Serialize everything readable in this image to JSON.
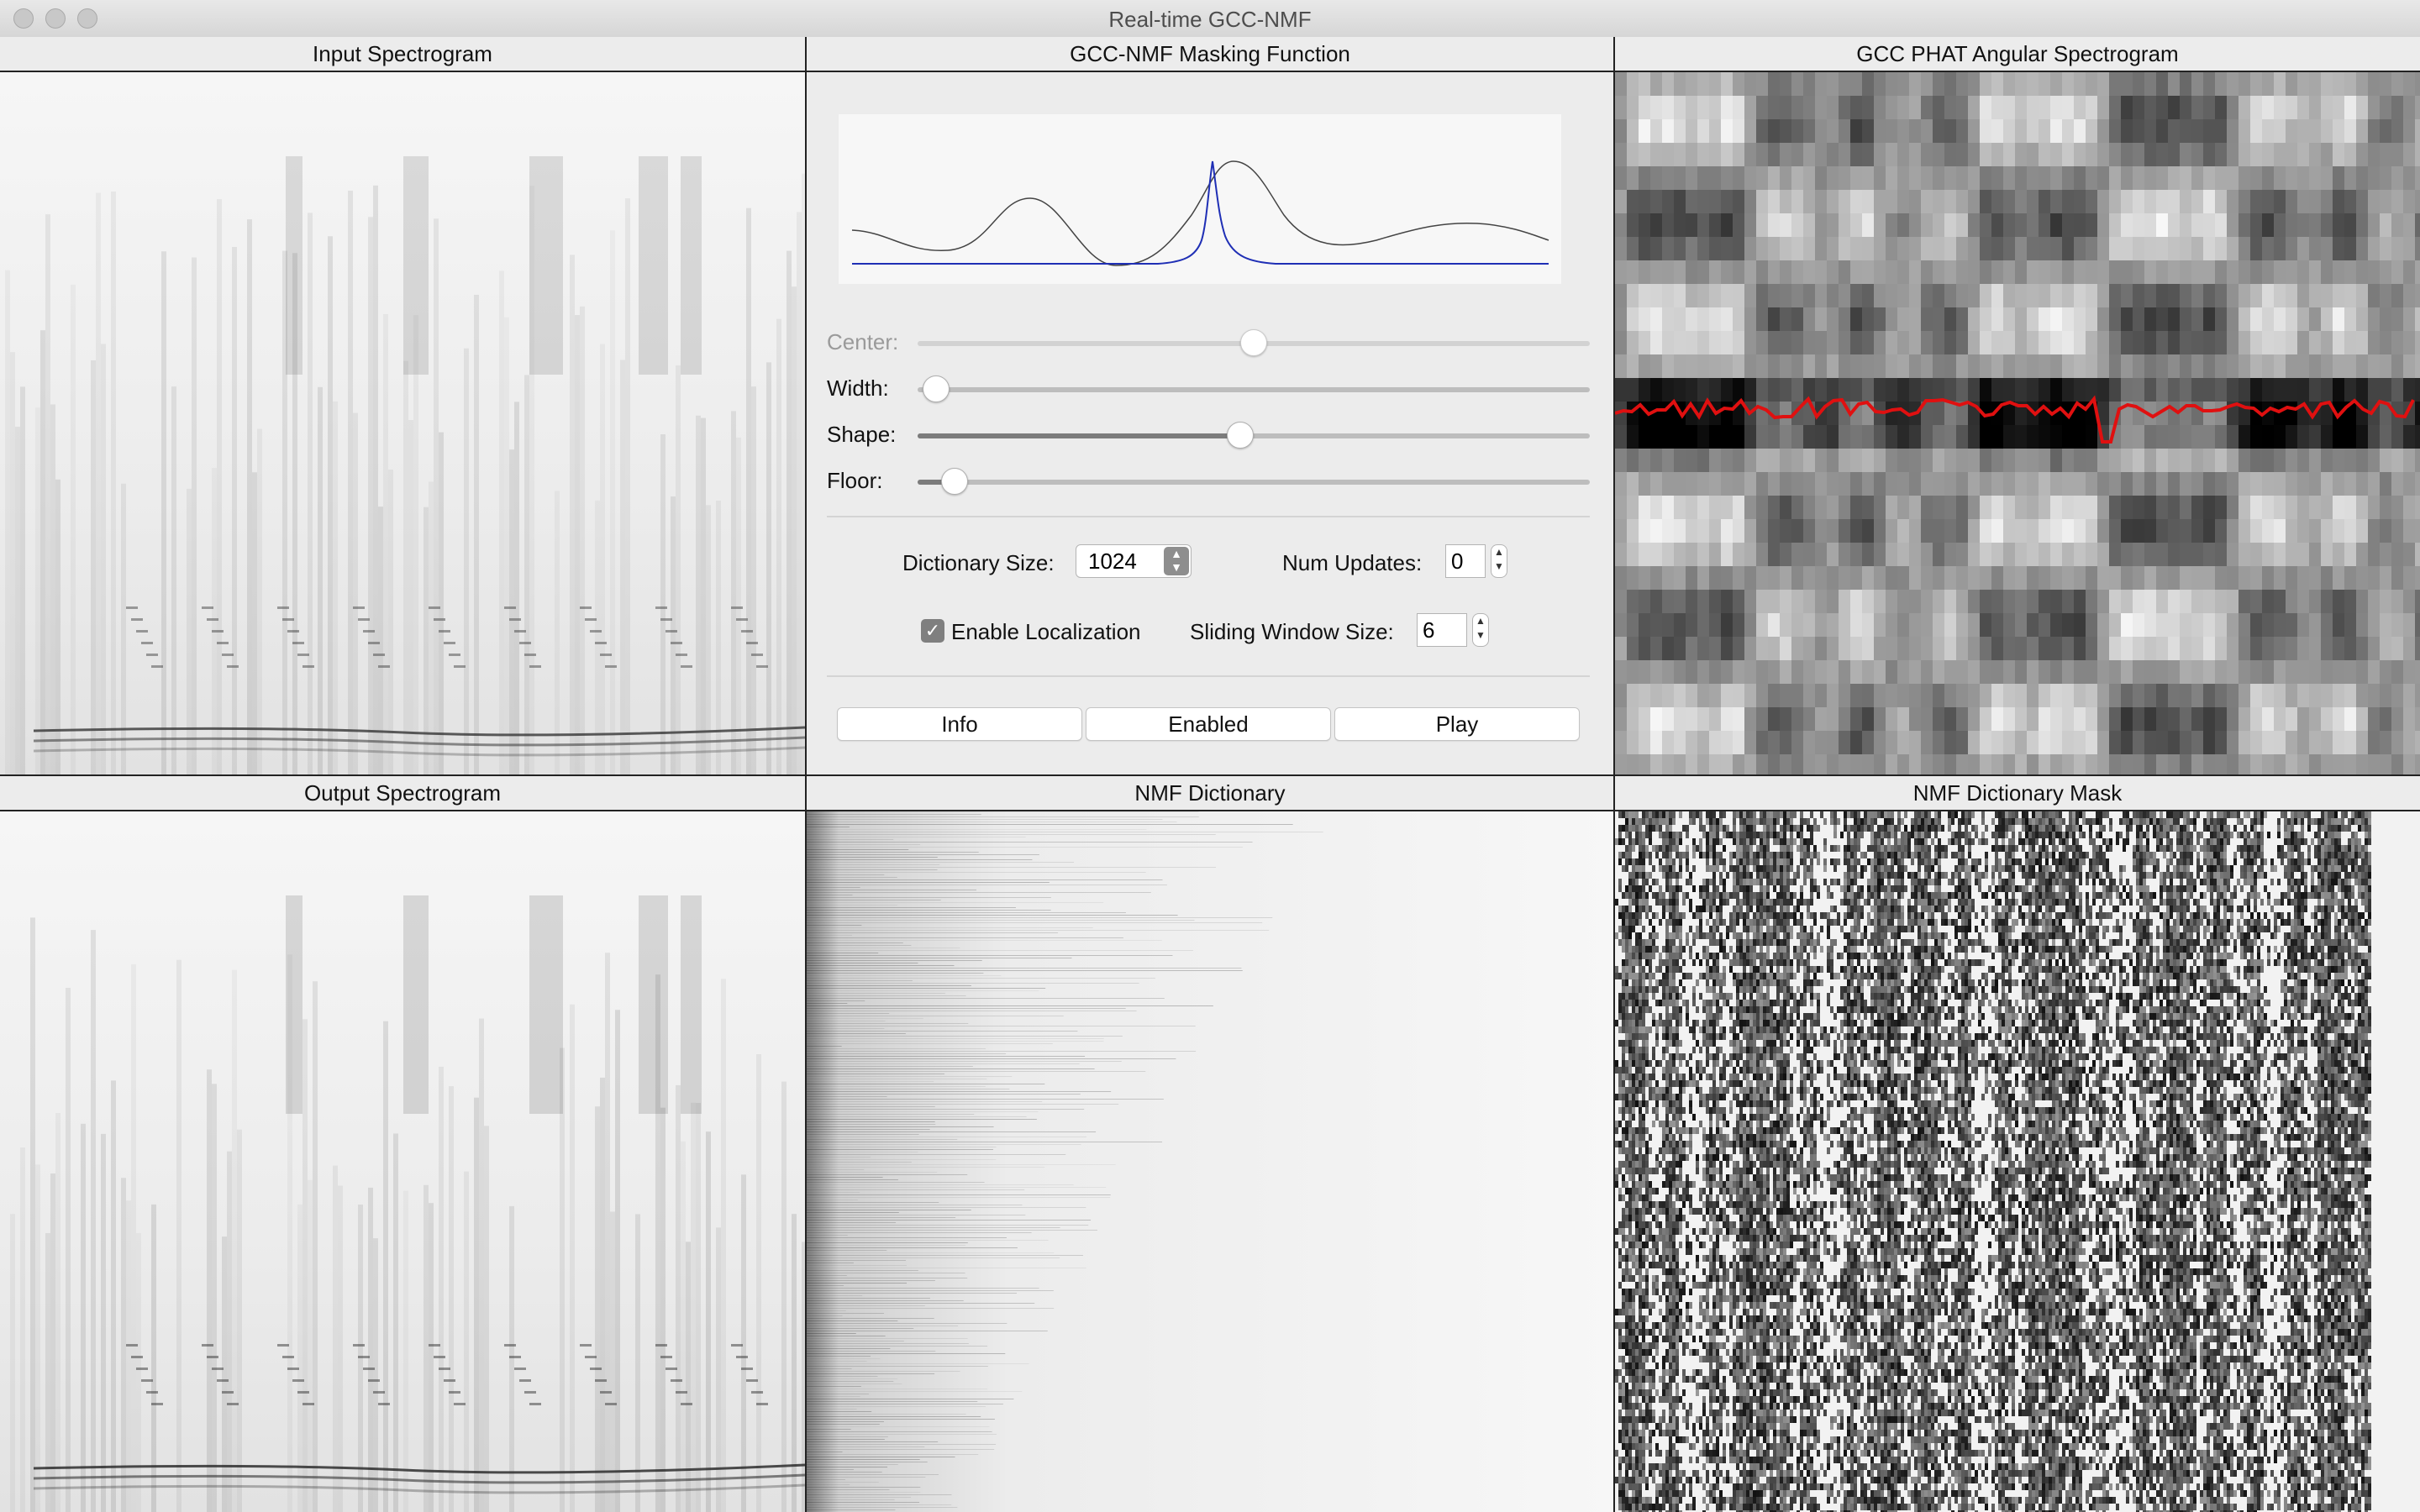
{
  "window": {
    "title": "Real-time GCC-NMF"
  },
  "panels": {
    "input_spectrogram": {
      "title": "Input Spectrogram"
    },
    "masking_function": {
      "title": "GCC-NMF Masking Function"
    },
    "angular_spectrogram": {
      "title": "GCC PHAT Angular Spectrogram"
    },
    "output_spectrogram": {
      "title": "Output Spectrogram"
    },
    "nmf_dictionary": {
      "title": "NMF Dictionary"
    },
    "nmf_dictionary_mask": {
      "title": "NMF Dictionary Mask"
    }
  },
  "sliders": {
    "center": {
      "label": "Center:",
      "value": 0.5
    },
    "width": {
      "label": "Width:",
      "value": 0.02
    },
    "shape": {
      "label": "Shape:",
      "value": 0.48
    },
    "floor": {
      "label": "Floor:",
      "value": 0.05
    }
  },
  "controls": {
    "dictionary_size_label": "Dictionary Size:",
    "dictionary_size_value": "1024",
    "num_updates_label": "Num Updates:",
    "num_updates_value": "0",
    "enable_localization_label": "Enable Localization",
    "enable_localization_checked": true,
    "sliding_window_label": "Sliding Window Size:",
    "sliding_window_value": "6"
  },
  "buttons": {
    "info": "Info",
    "enabled": "Enabled",
    "play": "Play"
  },
  "colors": {
    "gcc_curve": "#444444",
    "mask_curve": "#1f2fb5",
    "localization_track": "#e01010"
  }
}
